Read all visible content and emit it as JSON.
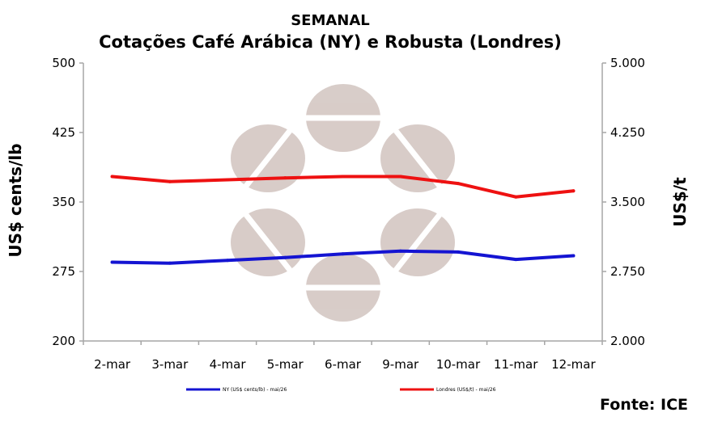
{
  "chart_data": {
    "type": "line",
    "title": "SEMANAL",
    "subtitle": "Cotações Café Arábica (NY) e Robusta (Londres)",
    "categories": [
      "2-mar",
      "3-mar",
      "4-mar",
      "5-mar",
      "6-mar",
      "9-mar",
      "10-mar",
      "11-mar",
      "12-mar"
    ],
    "ylabel": "US$ cents/lb",
    "y2label": "US$/t",
    "ylim": [
      200,
      500
    ],
    "y2lim": [
      2000,
      5000
    ],
    "yticks": [
      "200",
      "275",
      "350",
      "425",
      "500"
    ],
    "y2ticks": [
      "2.000",
      "2.750",
      "3.500",
      "4.250",
      "5.000"
    ],
    "grid": false,
    "legend_position": "bottom",
    "series": [
      {
        "name": "NY (US$ cents/lb) - mai/26",
        "axis": "left",
        "color": "#1414d2",
        "values": [
          285,
          284,
          287,
          290,
          294,
          297,
          296,
          288,
          292
        ]
      },
      {
        "name": "Londres (US$/t) - mai/26",
        "axis": "right",
        "color": "#ee1111",
        "values": [
          3775,
          3720,
          3740,
          3760,
          3775,
          3775,
          3700,
          3555,
          3620
        ]
      }
    ],
    "source": "Fonte: ICE"
  }
}
